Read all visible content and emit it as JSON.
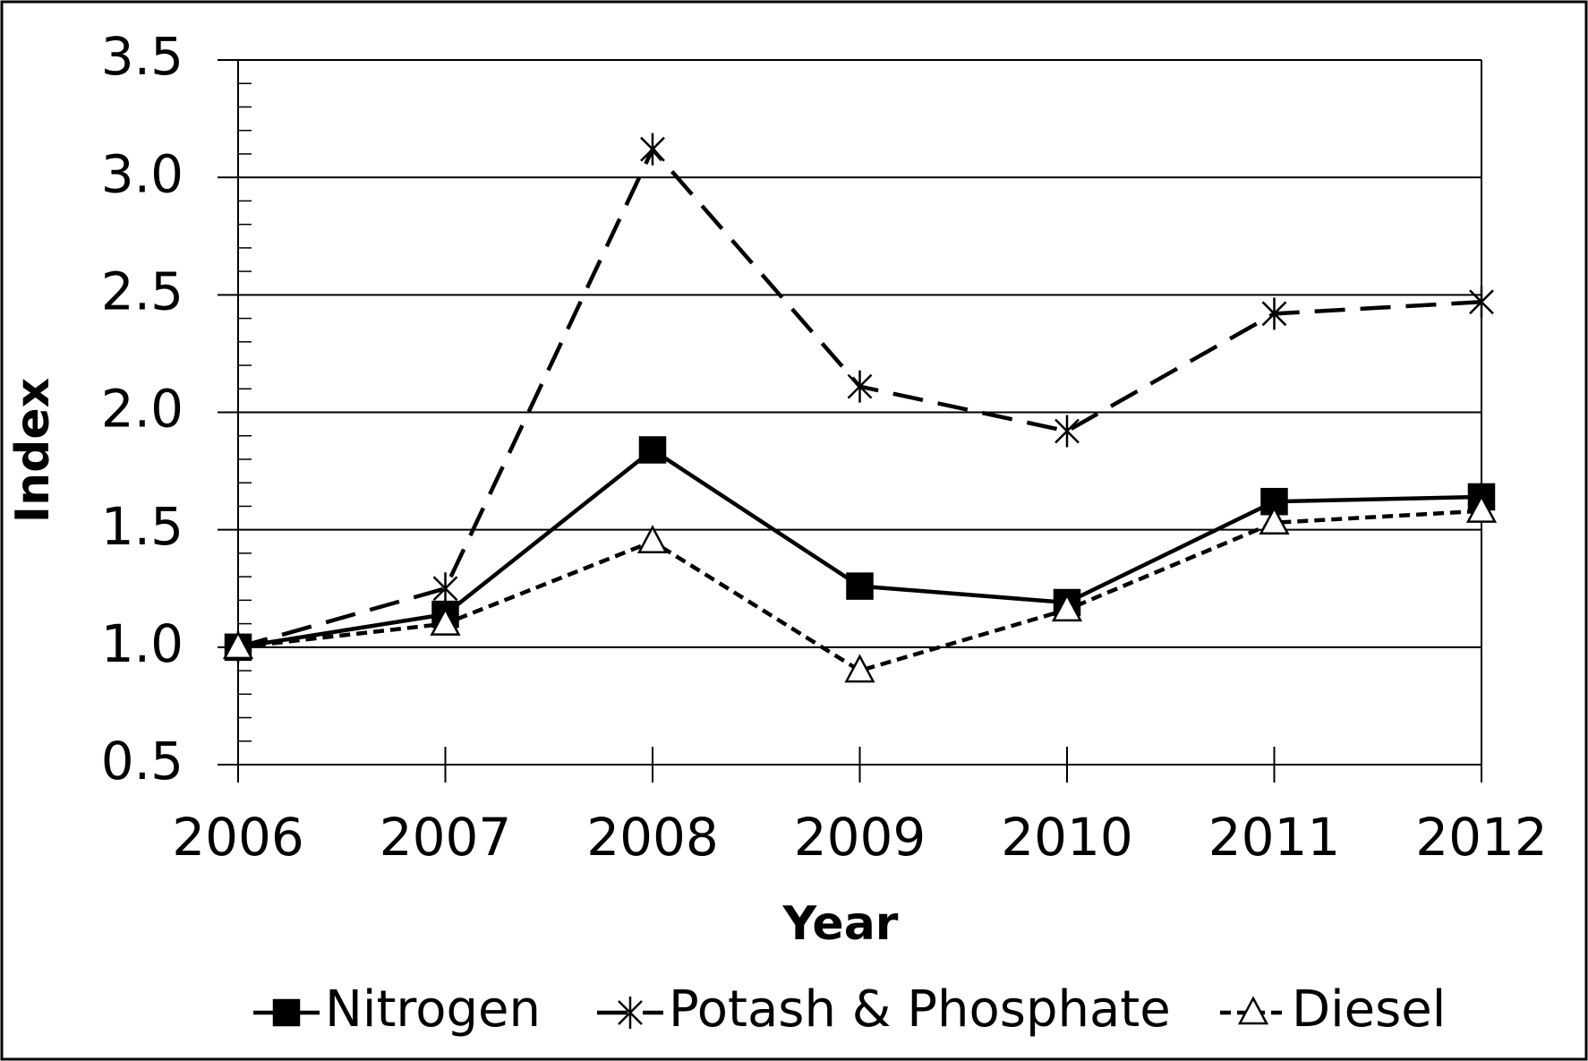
{
  "chart_data": {
    "type": "line",
    "x_label": "Year",
    "y_label": "Index",
    "categories": [
      "2006",
      "2007",
      "2008",
      "2009",
      "2010",
      "2011",
      "2012"
    ],
    "series": [
      {
        "name": "Nitrogen",
        "color": "#000000",
        "marker": "square",
        "dash": "solid",
        "values": [
          1.0,
          1.14,
          1.84,
          1.26,
          1.19,
          1.62,
          1.64
        ]
      },
      {
        "name": "Potash & Phosphate",
        "color": "#000000",
        "marker": "asterisk",
        "dash": "long",
        "values": [
          1.0,
          1.25,
          3.12,
          2.11,
          1.92,
          2.42,
          2.47
        ]
      },
      {
        "name": "Diesel",
        "color": "#000000",
        "marker": "triangle",
        "dash": "short",
        "values": [
          1.0,
          1.1,
          1.45,
          0.9,
          1.16,
          1.53,
          1.58
        ]
      }
    ],
    "ylim": [
      0.5,
      3.5
    ],
    "yticks": [
      0.5,
      {
        "value": 1,
        "label": "1.0"
      },
      1.5,
      {
        "value": 2,
        "label": "2.0"
      },
      2.5,
      {
        "value": 3,
        "label": "3.0"
      },
      3.5
    ],
    "grid": true,
    "legend": "bottom"
  }
}
